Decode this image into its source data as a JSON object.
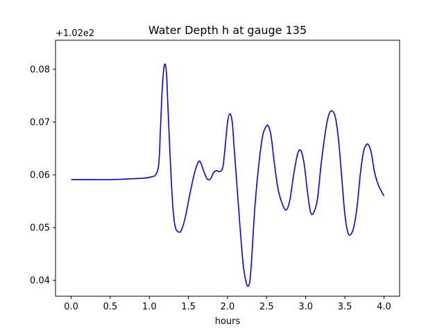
{
  "chart_data": {
    "type": "line",
    "title": "Water Depth h at gauge 135",
    "xlabel": "hours",
    "ylabel": "",
    "offset_label": "+1.02e2",
    "xlim": [
      -0.2,
      4.2
    ],
    "ylim": [
      0.037,
      0.0855
    ],
    "xticks": [
      0.0,
      0.5,
      1.0,
      1.5,
      2.0,
      2.5,
      3.0,
      3.5,
      4.0
    ],
    "xtick_labels": [
      "0.0",
      "0.5",
      "1.0",
      "1.5",
      "2.0",
      "2.5",
      "3.0",
      "3.5",
      "4.0"
    ],
    "yticks": [
      0.04,
      0.05,
      0.06,
      0.07,
      0.08
    ],
    "ytick_labels": [
      "0.04",
      "0.05",
      "0.06",
      "0.07",
      "0.08"
    ],
    "grid": false,
    "legend": "none",
    "series": [
      {
        "color": "#0000ff",
        "x": [
          0.0,
          0.3,
          0.5,
          0.7,
          0.85,
          0.95,
          1.02,
          1.08,
          1.12,
          1.14,
          1.16,
          1.18,
          1.2,
          1.22,
          1.24,
          1.27,
          1.3,
          1.33,
          1.37,
          1.41,
          1.46,
          1.52,
          1.58,
          1.63,
          1.66,
          1.7,
          1.74,
          1.78,
          1.82,
          1.86,
          1.9,
          1.94,
          1.97,
          2.0,
          2.03,
          2.06,
          2.08,
          2.12,
          2.16,
          2.2,
          2.24,
          2.27,
          2.29,
          2.31,
          2.35,
          2.4,
          2.45,
          2.5,
          2.53,
          2.56,
          2.6,
          2.65,
          2.72,
          2.76,
          2.8,
          2.85,
          2.9,
          2.94,
          2.98,
          3.02,
          3.06,
          3.1,
          3.15,
          3.2,
          3.26,
          3.3,
          3.34,
          3.38,
          3.42,
          3.46,
          3.5,
          3.54,
          3.58,
          3.62,
          3.66,
          3.7,
          3.74,
          3.78,
          3.81,
          3.84,
          3.88,
          3.93,
          4.0
        ],
        "y": [
          0.0591,
          0.0591,
          0.0591,
          0.0592,
          0.0593,
          0.0594,
          0.0596,
          0.06,
          0.062,
          0.068,
          0.075,
          0.0795,
          0.081,
          0.079,
          0.072,
          0.062,
          0.054,
          0.0502,
          0.0492,
          0.0495,
          0.052,
          0.0565,
          0.0605,
          0.0625,
          0.0622,
          0.0605,
          0.0592,
          0.0592,
          0.0604,
          0.0608,
          0.0606,
          0.0615,
          0.0655,
          0.07,
          0.0716,
          0.07,
          0.066,
          0.058,
          0.05,
          0.043,
          0.0395,
          0.039,
          0.0405,
          0.0445,
          0.054,
          0.062,
          0.0675,
          0.0693,
          0.069,
          0.067,
          0.062,
          0.057,
          0.0538,
          0.0535,
          0.0555,
          0.0605,
          0.0642,
          0.0645,
          0.062,
          0.057,
          0.053,
          0.0528,
          0.0555,
          0.0625,
          0.069,
          0.0716,
          0.0721,
          0.0708,
          0.0665,
          0.0595,
          0.0525,
          0.049,
          0.0488,
          0.0505,
          0.0545,
          0.0605,
          0.0645,
          0.0658,
          0.0655,
          0.064,
          0.0605,
          0.058,
          0.056
        ]
      }
    ]
  }
}
